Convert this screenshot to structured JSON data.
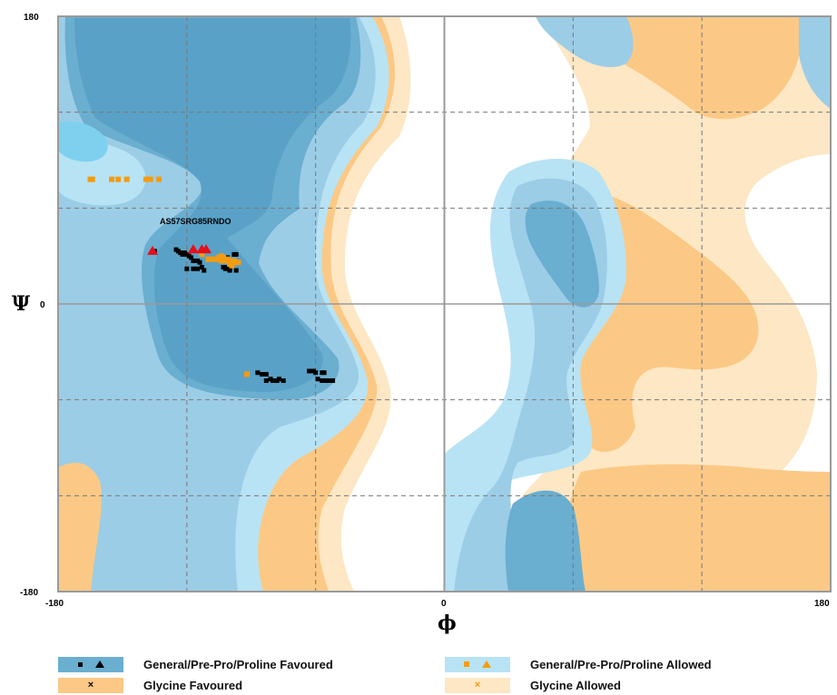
{
  "chart_data": {
    "type": "scatter",
    "title": "",
    "xlabel": "ϕ",
    "ylabel": "Ψ",
    "xlim": [
      -180,
      180
    ],
    "ylim": [
      -180,
      180
    ],
    "x_ticks": [
      "-180",
      "0",
      "180"
    ],
    "y_ticks": [
      "180",
      "0",
      "-180"
    ],
    "gridlines": [
      -120,
      -60,
      60,
      120
    ],
    "colors": {
      "general_favoured": "#6aaed0",
      "general_allowed": "#b8e3f4",
      "glycine_favoured": "#fbc985",
      "glycine_allowed": "#fde7c4",
      "marker_general": "#000000",
      "marker_allowed": "#f39c12",
      "marker_outlier": "#e6101a"
    },
    "residue_label": "AS57SRG85RNDO",
    "series": [
      {
        "name": "General/Pre-Pro/Proline Favoured",
        "points": [
          [
            -135,
            33
          ],
          [
            -125,
            34
          ],
          [
            -124,
            33
          ],
          [
            -122,
            31
          ],
          [
            -121,
            32
          ],
          [
            -120,
            31
          ],
          [
            -119,
            30
          ],
          [
            -118,
            29
          ],
          [
            -123,
            32
          ],
          [
            -115,
            27
          ],
          [
            -114,
            26
          ],
          [
            -117,
            27
          ],
          [
            -98,
            26
          ],
          [
            -101,
            29
          ],
          [
            -98,
            31
          ],
          [
            -97,
            31
          ],
          [
            -120,
            22
          ],
          [
            -117,
            22
          ],
          [
            -115,
            22
          ],
          [
            -112,
            21
          ],
          [
            -113,
            23
          ],
          [
            -103,
            23
          ],
          [
            -102,
            22
          ],
          [
            -100,
            21
          ],
          [
            -97,
            21
          ],
          [
            -100,
            22
          ],
          [
            -101,
            23
          ],
          [
            -87,
            -43
          ],
          [
            -85,
            -44
          ],
          [
            -83,
            -44
          ],
          [
            -80,
            -48
          ],
          [
            -78,
            -48
          ],
          [
            -75,
            -48
          ],
          [
            -77,
            -47
          ],
          [
            -81,
            -47
          ],
          [
            -83,
            -48
          ],
          [
            -63,
            -42
          ],
          [
            -61,
            -42
          ],
          [
            -60,
            -43
          ],
          [
            -57,
            -43
          ],
          [
            -59,
            -47
          ],
          [
            -57,
            -48
          ],
          [
            -55,
            -48
          ],
          [
            -53,
            -48
          ],
          [
            -52,
            -48
          ],
          [
            -56,
            -43
          ]
        ]
      },
      {
        "name": "General/Pre-Pro/Proline Allowed",
        "points": [
          [
            -165,
            78
          ],
          [
            -164,
            78
          ],
          [
            -155,
            78
          ],
          [
            -152,
            78
          ],
          [
            -148,
            78
          ],
          [
            -139,
            78
          ],
          [
            -137,
            78
          ],
          [
            -133,
            78
          ],
          [
            -110,
            28
          ],
          [
            -108,
            28
          ],
          [
            -106,
            28
          ],
          [
            -105,
            29
          ],
          [
            -103,
            29
          ],
          [
            -101,
            28
          ],
          [
            -100,
            27
          ],
          [
            -98,
            26
          ],
          [
            -96,
            26
          ],
          [
            -99,
            24
          ],
          [
            -103,
            29
          ],
          [
            -104,
            27
          ],
          [
            -102,
            27
          ],
          [
            -100,
            25
          ],
          [
            -98,
            27
          ],
          [
            -104,
            30
          ],
          [
            -113,
            31
          ],
          [
            -92,
            -44
          ]
        ]
      },
      {
        "name": "Outliers",
        "points": [
          [
            -136,
            33
          ],
          [
            -117,
            34
          ],
          [
            -113,
            34
          ],
          [
            -111,
            34
          ]
        ]
      }
    ]
  },
  "legend": {
    "general_favoured": "General/Pre-Pro/Proline Favoured",
    "general_allowed": "General/Pre-Pro/Proline Allowed",
    "glycine_favoured": "Glycine Favoured",
    "glycine_allowed": "Glycine Allowed",
    "glycine_marker": "×"
  }
}
